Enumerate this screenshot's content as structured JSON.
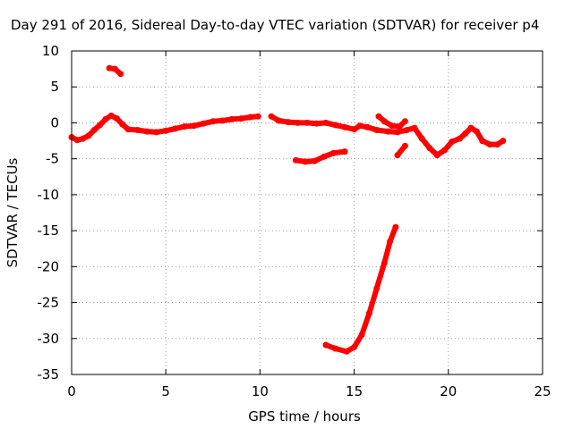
{
  "chart_data": {
    "type": "scatter",
    "title": "Day 291 of 2016, Sidereal Day-to-day VTEC variation (SDTVAR) for receiver p4",
    "xlabel": "GPS time / hours",
    "ylabel": "SDTVAR / TECUs",
    "xlim": [
      0,
      25
    ],
    "ylim": [
      -35,
      10
    ],
    "xticks": [
      0,
      5,
      10,
      15,
      20,
      25
    ],
    "yticks": [
      -35,
      -30,
      -25,
      -20,
      -15,
      -10,
      -5,
      0,
      5,
      10
    ],
    "grid": true,
    "colors": {
      "series": "#ff0000",
      "grid": "#a0a0a0",
      "axis": "#000000"
    },
    "series": [
      {
        "name": "SDTVAR",
        "segments": [
          [
            [
              0.0,
              -2.0
            ],
            [
              0.3,
              -2.4
            ],
            [
              0.6,
              -2.2
            ],
            [
              0.9,
              -1.8
            ],
            [
              1.2,
              -1.0
            ],
            [
              1.5,
              -0.3
            ],
            [
              1.8,
              0.5
            ],
            [
              2.1,
              1.0
            ],
            [
              2.4,
              0.6
            ],
            [
              2.7,
              -0.2
            ],
            [
              3.0,
              -0.9
            ],
            [
              3.5,
              -1.0
            ],
            [
              4.0,
              -1.2
            ],
            [
              4.5,
              -1.3
            ],
            [
              5.0,
              -1.1
            ],
            [
              5.5,
              -0.8
            ],
            [
              6.0,
              -0.5
            ],
            [
              6.5,
              -0.4
            ],
            [
              7.0,
              -0.1
            ],
            [
              7.5,
              0.2
            ],
            [
              8.0,
              0.3
            ],
            [
              8.5,
              0.5
            ],
            [
              9.0,
              0.6
            ],
            [
              9.5,
              0.8
            ],
            [
              9.9,
              0.9
            ]
          ],
          [
            [
              2.0,
              7.6
            ],
            [
              2.3,
              7.5
            ],
            [
              2.6,
              6.8
            ]
          ],
          [
            [
              10.6,
              0.9
            ],
            [
              11.0,
              0.3
            ],
            [
              11.5,
              0.1
            ],
            [
              12.0,
              0.0
            ],
            [
              12.5,
              0.0
            ],
            [
              13.0,
              -0.1
            ],
            [
              13.5,
              0.0
            ],
            [
              14.0,
              -0.3
            ],
            [
              14.5,
              -0.6
            ],
            [
              15.0,
              -0.9
            ],
            [
              15.3,
              -0.4
            ],
            [
              15.7,
              -0.6
            ],
            [
              16.2,
              -1.0
            ],
            [
              16.8,
              -1.2
            ],
            [
              17.3,
              -1.3
            ],
            [
              17.8,
              -1.0
            ],
            [
              18.2,
              -0.7
            ],
            [
              18.6,
              -2.2
            ],
            [
              19.0,
              -3.5
            ],
            [
              19.4,
              -4.5
            ],
            [
              19.8,
              -3.8
            ],
            [
              20.2,
              -2.6
            ],
            [
              20.6,
              -2.2
            ],
            [
              20.9,
              -1.5
            ],
            [
              21.2,
              -0.7
            ],
            [
              21.5,
              -1.2
            ],
            [
              21.8,
              -2.5
            ],
            [
              22.2,
              -3.0
            ],
            [
              22.6,
              -3.0
            ],
            [
              22.9,
              -2.5
            ]
          ],
          [
            [
              16.3,
              0.9
            ],
            [
              16.6,
              0.2
            ],
            [
              17.0,
              -0.4
            ],
            [
              17.4,
              -0.5
            ],
            [
              17.7,
              0.2
            ]
          ],
          [
            [
              11.9,
              -5.2
            ],
            [
              12.4,
              -5.4
            ],
            [
              12.9,
              -5.3
            ],
            [
              13.4,
              -4.7
            ],
            [
              13.9,
              -4.2
            ],
            [
              14.5,
              -4.0
            ]
          ],
          [
            [
              17.3,
              -4.5
            ],
            [
              17.7,
              -3.2
            ]
          ],
          [
            [
              13.5,
              -30.9
            ],
            [
              14.0,
              -31.4
            ],
            [
              14.6,
              -31.8
            ],
            [
              15.0,
              -31.2
            ],
            [
              15.4,
              -29.5
            ],
            [
              15.8,
              -26.5
            ],
            [
              16.2,
              -23.0
            ],
            [
              16.6,
              -19.5
            ],
            [
              16.9,
              -16.5
            ],
            [
              17.2,
              -14.5
            ]
          ]
        ]
      }
    ]
  }
}
